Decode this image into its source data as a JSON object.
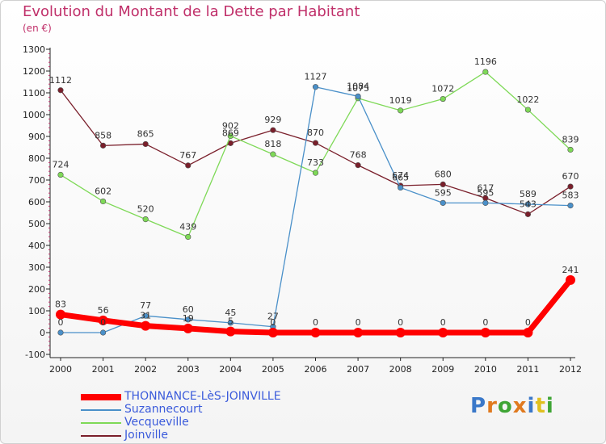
{
  "title": "Evolution du Montant de la Dette par Habitant",
  "subtitle": "(en €)",
  "logo": {
    "text": "Proxiti",
    "colors": [
      "#3a78c9",
      "#e07a1f",
      "#3fa535",
      "#e07a1f",
      "#3a78c9",
      "#e0c020",
      "#3fa535"
    ]
  },
  "chart_data": {
    "type": "line",
    "title": "Evolution du Montant de la Dette par Habitant",
    "ylabel": "(en €)",
    "categories": [
      "2000",
      "2001",
      "2002",
      "2003",
      "2004",
      "2005",
      "2006",
      "2007",
      "2008",
      "2009",
      "2010",
      "2011",
      "2012"
    ],
    "ylim": [
      -100,
      1300
    ],
    "yticks": [
      -100,
      0,
      100,
      200,
      300,
      400,
      500,
      600,
      700,
      800,
      900,
      1000,
      1100,
      1200,
      1300
    ],
    "grid": false,
    "series": [
      {
        "name": "THONNANCE-LèS-JOINVILLE",
        "color": "#ff0000",
        "values": [
          83,
          56,
          31,
          19,
          5,
          0,
          0,
          0,
          0,
          0,
          0,
          0,
          241
        ],
        "labels": [
          "83",
          "56",
          "31",
          "19",
          "5",
          "0",
          "0",
          "0",
          "0",
          "0",
          "0",
          "0",
          "241"
        ]
      },
      {
        "name": "Suzannecourt",
        "color": "#4a90c9",
        "values": [
          0,
          0,
          77,
          60,
          45,
          27,
          1127,
          1084,
          665,
          595,
          595,
          589,
          583
        ],
        "labels": [
          "0",
          "0",
          "77",
          "60",
          "45",
          "27",
          "1127",
          "1084",
          "665",
          "595",
          "595",
          "589",
          "583"
        ]
      },
      {
        "name": "Vecqueville",
        "color": "#7ed957",
        "values": [
          724,
          602,
          520,
          439,
          902,
          818,
          733,
          1075,
          1019,
          1072,
          1196,
          1022,
          839
        ],
        "labels": [
          "724",
          "602",
          "520",
          "439",
          "902",
          "818",
          "733",
          "1075",
          "1019",
          "1072",
          "1196",
          "1022",
          "839"
        ]
      },
      {
        "name": "Joinville",
        "color": "#7a1f2b",
        "values": [
          1112,
          858,
          865,
          767,
          869,
          929,
          870,
          768,
          674,
          680,
          617,
          543,
          670
        ],
        "labels": [
          "1112",
          "858",
          "865",
          "767",
          "869",
          "929",
          "870",
          "768",
          "674",
          "680",
          "617",
          "543",
          "670"
        ]
      }
    ]
  }
}
